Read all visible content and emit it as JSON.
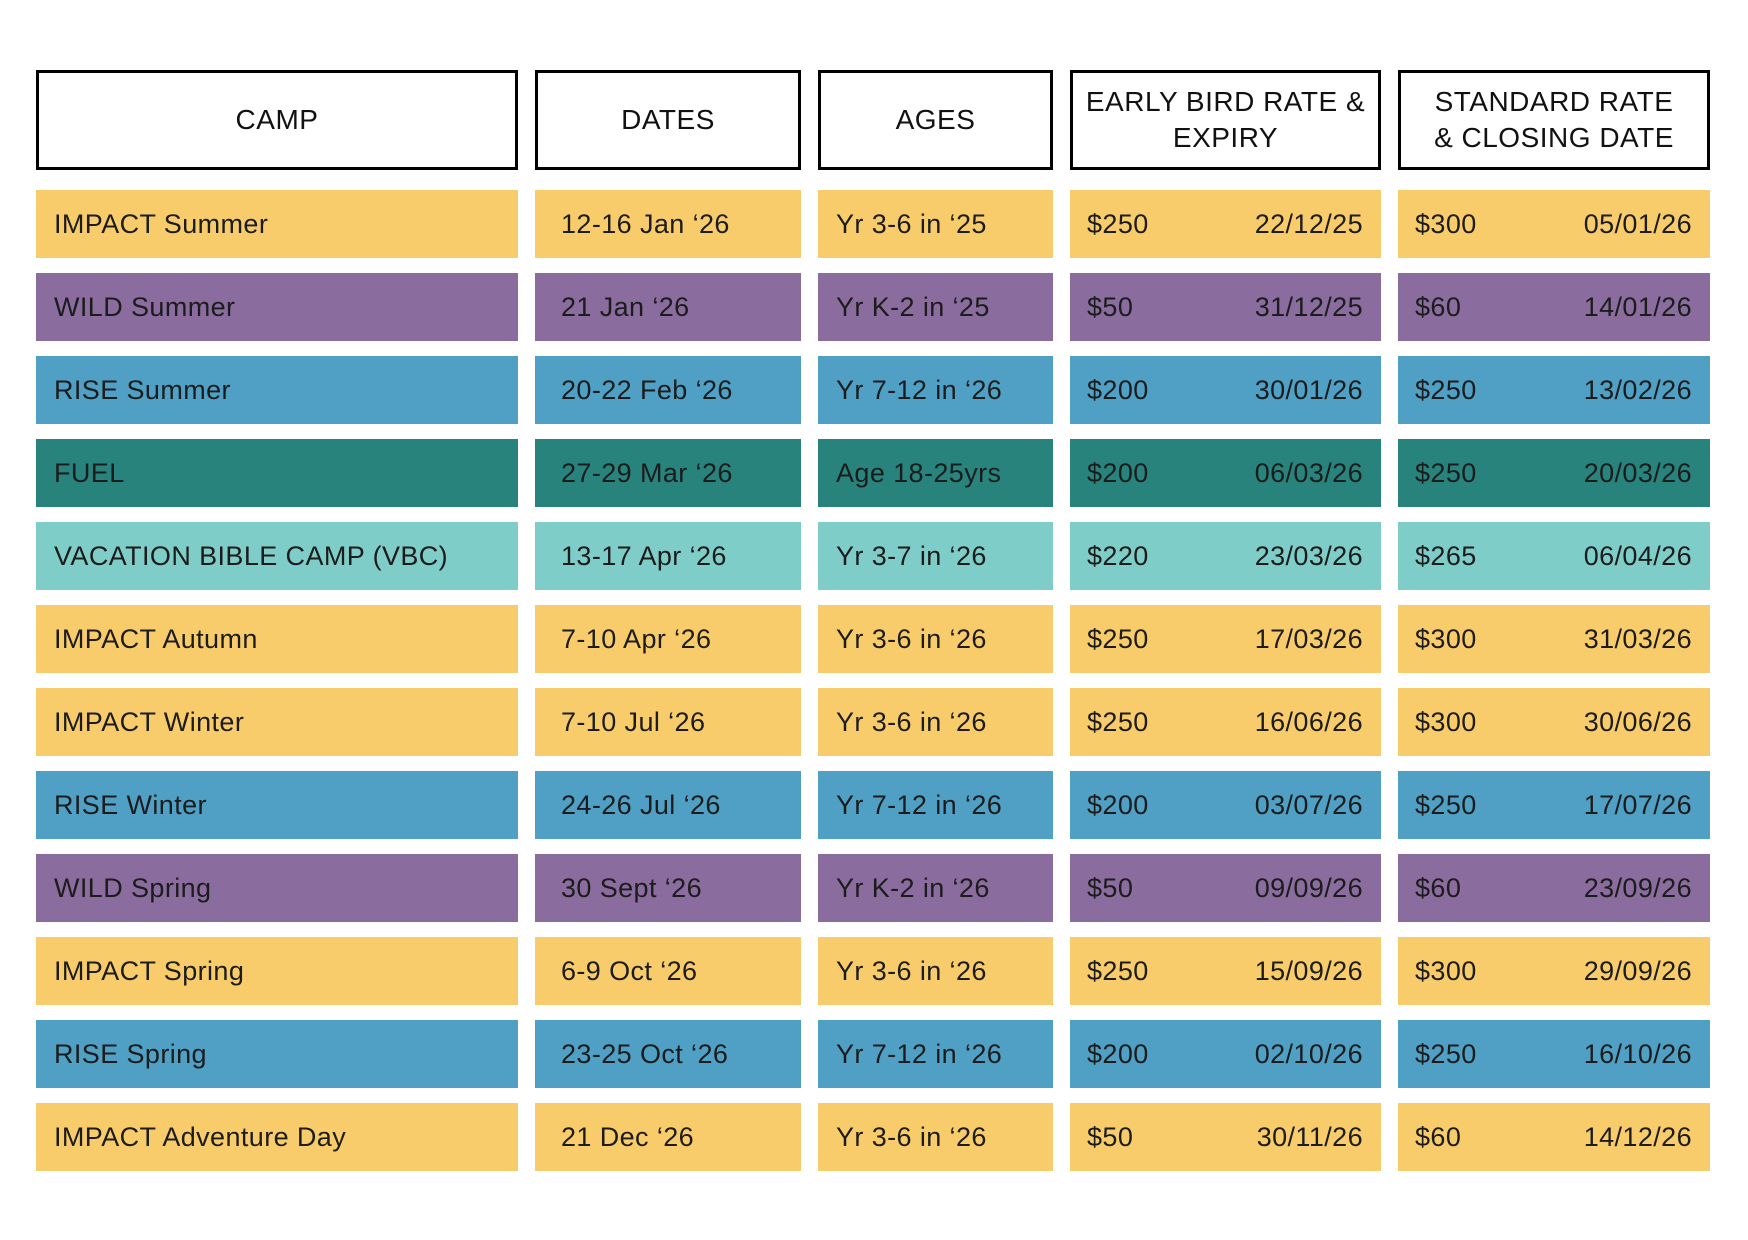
{
  "table": {
    "headers": [
      {
        "label": "CAMP"
      },
      {
        "label": "DATES"
      },
      {
        "label": "AGES"
      },
      {
        "label": "EARLY BIRD RATE &\nEXPIRY"
      },
      {
        "label": "STANDARD RATE\n& CLOSING DATE"
      }
    ],
    "rows": [
      {
        "camp": "IMPACT Summer",
        "dates": "12-16 Jan ‘26",
        "ages": "Yr 3-6 in ‘25",
        "early_rate": "$250",
        "early_expiry": "22/12/25",
        "std_rate": "$300",
        "std_close": "05/01/26",
        "color": "yellow"
      },
      {
        "camp": "WILD Summer",
        "dates": "21 Jan ‘26",
        "ages": "Yr K-2 in ‘25",
        "early_rate": "$50",
        "early_expiry": "31/12/25",
        "std_rate": "$60",
        "std_close": "14/01/26",
        "color": "purple"
      },
      {
        "camp": "RISE Summer",
        "dates": "20-22 Feb ‘26",
        "ages": "Yr 7-12 in ‘26",
        "early_rate": "$200",
        "early_expiry": "30/01/26",
        "std_rate": "$250",
        "std_close": "13/02/26",
        "color": "blue"
      },
      {
        "camp": "FUEL",
        "dates": "27-29 Mar ‘26",
        "ages": "Age 18-25yrs",
        "early_rate": "$200",
        "early_expiry": "06/03/26",
        "std_rate": "$250",
        "std_close": "20/03/26",
        "color": "teal"
      },
      {
        "camp": "VACATION BIBLE CAMP (VBC)",
        "dates": "13-17 Apr ‘26",
        "ages": "Yr 3-7 in ‘26",
        "early_rate": "$220",
        "early_expiry": "23/03/26",
        "std_rate": "$265",
        "std_close": "06/04/26",
        "color": "light_teal"
      },
      {
        "camp": "IMPACT Autumn",
        "dates": "7-10 Apr ‘26",
        "ages": "Yr 3-6 in ‘26",
        "early_rate": "$250",
        "early_expiry": "17/03/26",
        "std_rate": "$300",
        "std_close": "31/03/26",
        "color": "yellow"
      },
      {
        "camp": "IMPACT Winter",
        "dates": "7-10 Jul ‘26",
        "ages": "Yr 3-6 in ‘26",
        "early_rate": "$250",
        "early_expiry": "16/06/26",
        "std_rate": "$300",
        "std_close": "30/06/26",
        "color": "yellow"
      },
      {
        "camp": "RISE Winter",
        "dates": "24-26 Jul ‘26",
        "ages": "Yr 7-12 in ‘26",
        "early_rate": "$200",
        "early_expiry": "03/07/26",
        "std_rate": "$250",
        "std_close": "17/07/26",
        "color": "blue"
      },
      {
        "camp": "WILD Spring",
        "dates": "30 Sept ‘26",
        "ages": "Yr K-2 in ‘26",
        "early_rate": "$50",
        "early_expiry": "09/09/26",
        "std_rate": "$60",
        "std_close": "23/09/26",
        "color": "purple"
      },
      {
        "camp": "IMPACT Spring",
        "dates": "6-9 Oct ‘26",
        "ages": "Yr 3-6 in ‘26",
        "early_rate": "$250",
        "early_expiry": "15/09/26",
        "std_rate": "$300",
        "std_close": "29/09/26",
        "color": "yellow"
      },
      {
        "camp": "RISE Spring",
        "dates": "23-25 Oct ‘26",
        "ages": "Yr 7-12 in ‘26",
        "early_rate": "$200",
        "early_expiry": "02/10/26",
        "std_rate": "$250",
        "std_close": "16/10/26",
        "color": "blue"
      },
      {
        "camp": "IMPACT Adventure Day",
        "dates": "21 Dec ‘26",
        "ages": "Yr 3-6 in ‘26",
        "early_rate": "$50",
        "early_expiry": "30/11/26",
        "std_rate": "$60",
        "std_close": "14/12/26",
        "color": "yellow"
      }
    ]
  },
  "colors": {
    "yellow": "#F8CC6B",
    "purple": "#8A6D9E",
    "blue": "#4FA0C4",
    "teal": "#27837C",
    "light_teal": "#7FCDC8",
    "header_border": "#000000",
    "text": "#1C1C1C"
  }
}
